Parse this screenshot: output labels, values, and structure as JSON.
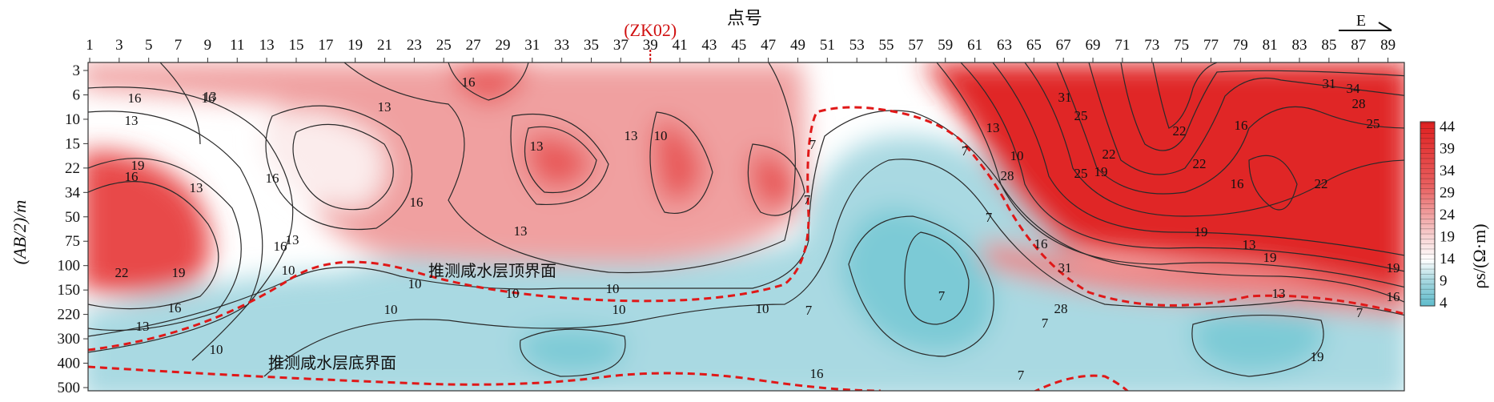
{
  "chart_data": {
    "type": "heatmap",
    "title": "点号",
    "xlabel": "点号",
    "ylabel": "(AB/2)/m",
    "x_ticks": [
      "1",
      "3",
      "5",
      "7",
      "9",
      "11",
      "13",
      "15",
      "17",
      "19",
      "21",
      "23",
      "25",
      "27",
      "29",
      "31",
      "33",
      "35",
      "37",
      "39",
      "41",
      "43",
      "45",
      "47",
      "49",
      "51",
      "53",
      "55",
      "57",
      "59",
      "61",
      "63",
      "65",
      "67",
      "69",
      "71",
      "73",
      "75",
      "77",
      "79",
      "81",
      "83",
      "85",
      "87",
      "89"
    ],
    "y_ticks": [
      "3",
      "6",
      "10",
      "15",
      "22",
      "34",
      "50",
      "75",
      "100",
      "150",
      "220",
      "300",
      "400",
      "500"
    ],
    "xlim": [
      1,
      90
    ],
    "ylim_labels": [
      "3",
      "500"
    ],
    "colorbar": {
      "label": "ρs/(Ω·m)",
      "ticks": [
        "44",
        "39",
        "34",
        "29",
        "24",
        "19",
        "14",
        "9",
        "4"
      ],
      "range": [
        4,
        44
      ],
      "low_color": "#5fbccc",
      "high_color": "#e02020"
    },
    "contour_labels": [
      "16",
      "13",
      "16",
      "16",
      "19",
      "22",
      "19",
      "16",
      "13",
      "13",
      "13",
      "10",
      "13",
      "13",
      "16",
      "16",
      "16",
      "16",
      "13",
      "10",
      "13",
      "13",
      "10",
      "10",
      "10",
      "10",
      "10",
      "10",
      "10",
      "7",
      "7",
      "7",
      "7",
      "7",
      "7",
      "7",
      "7",
      "19",
      "16",
      "13",
      "10",
      "28",
      "31",
      "28",
      "31",
      "25",
      "22",
      "25",
      "19",
      "16",
      "22",
      "19",
      "22",
      "16",
      "13",
      "19",
      "16",
      "13",
      "22",
      "31",
      "34",
      "25",
      "28",
      "19",
      "16",
      "7"
    ],
    "annotations": {
      "borehole": "(ZK02)",
      "borehole_x": 39,
      "top_boundary": "推测咸水层顶界面",
      "bottom_boundary": "推测咸水层底界面",
      "direction": "E"
    }
  }
}
